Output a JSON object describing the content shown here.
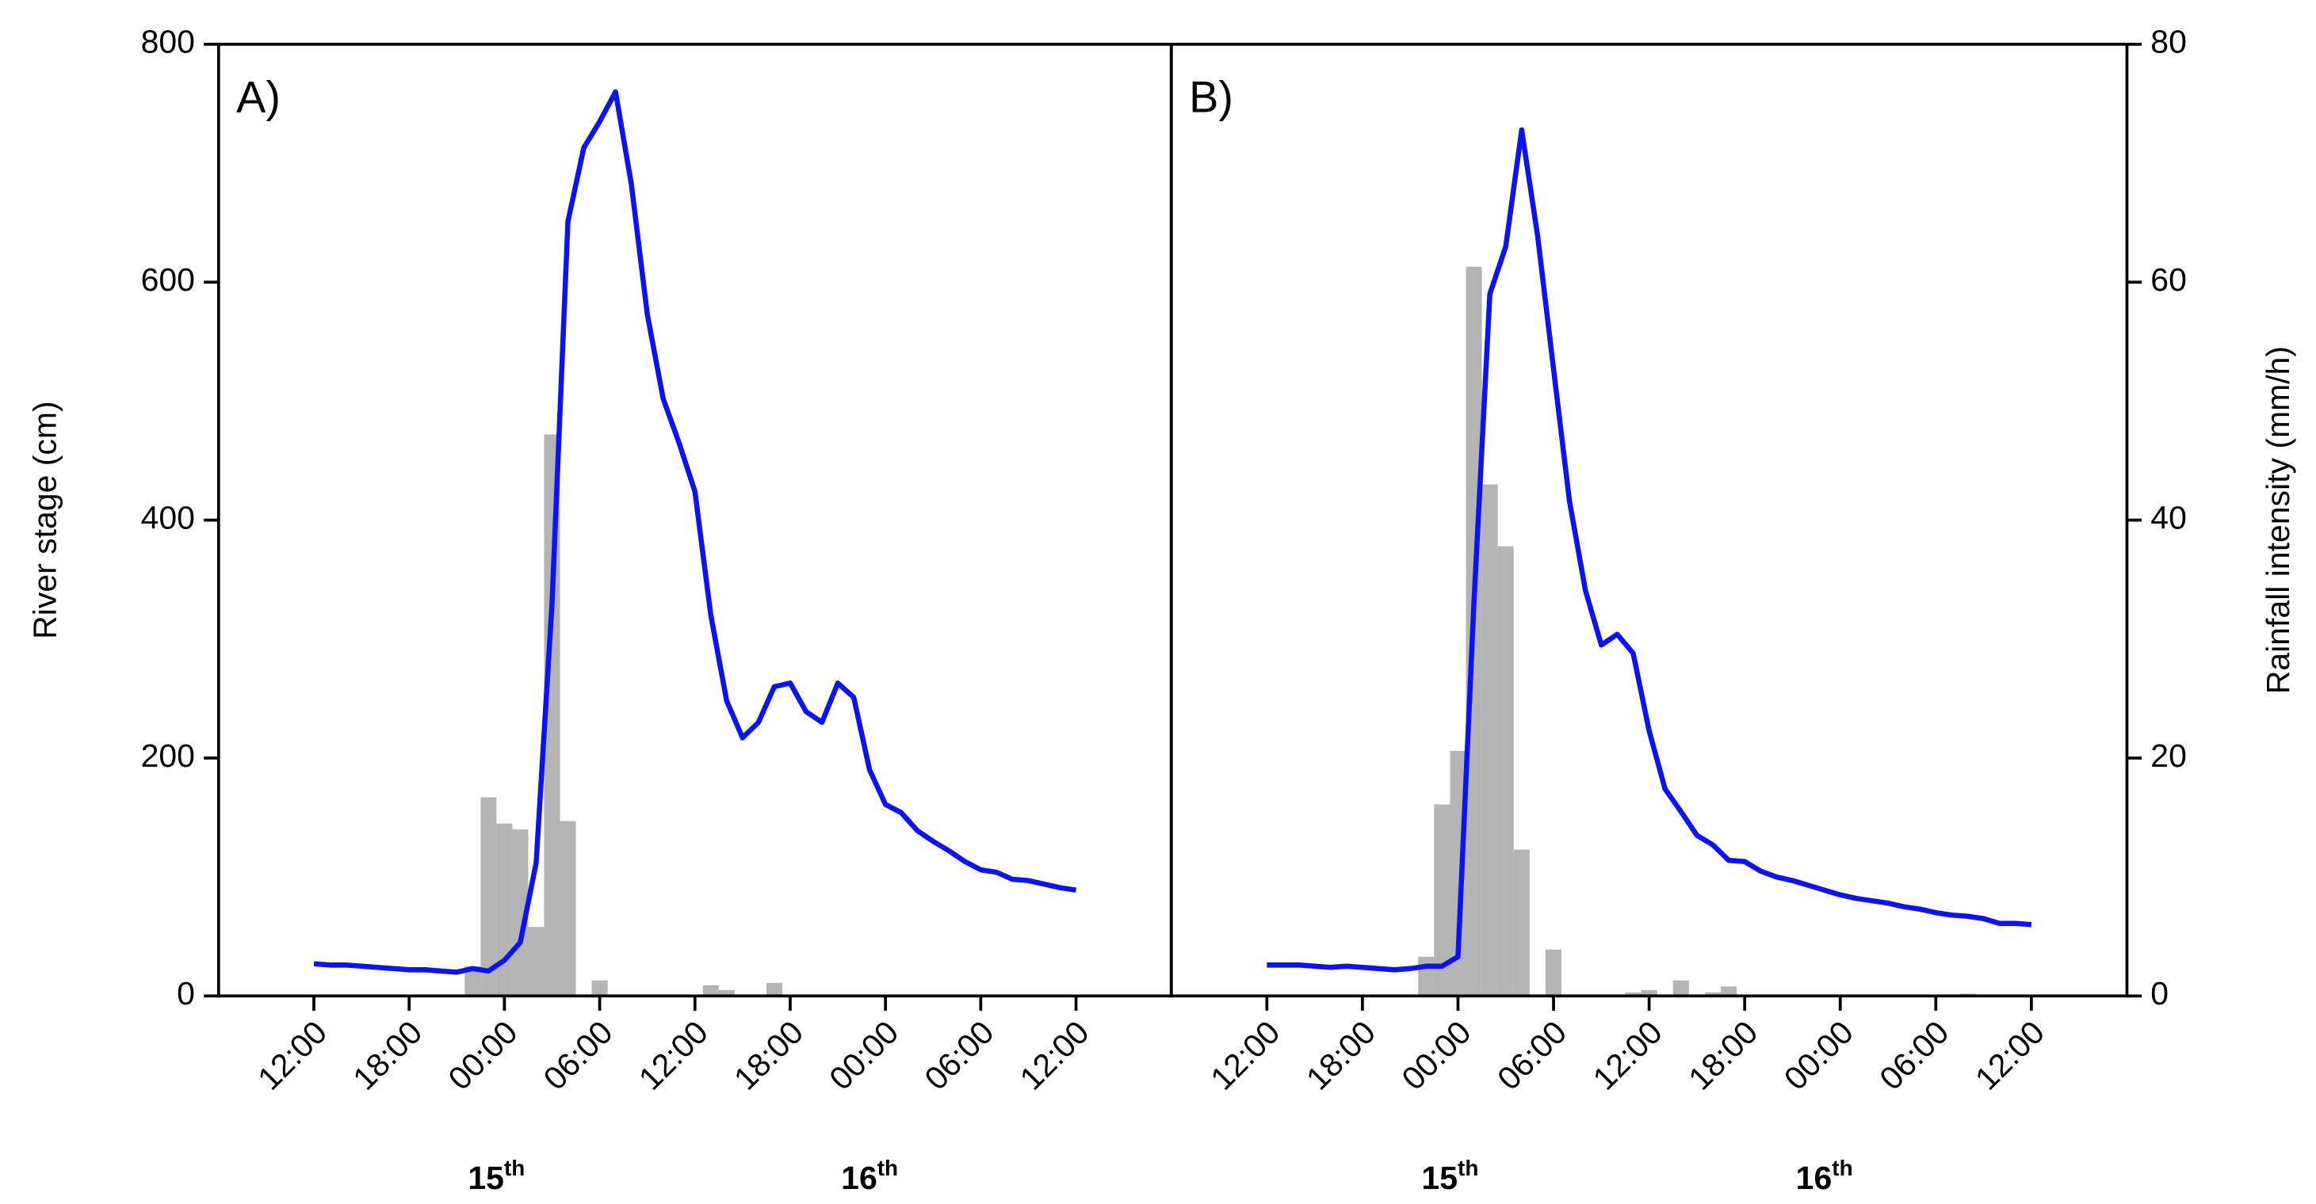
{
  "chart_data": [
    {
      "type": "combo",
      "panel_label": "A)",
      "ylabel": "River stage (cm)",
      "xlim": [
        -6,
        54
      ],
      "ylim": [
        0,
        800
      ],
      "y2lim": [
        0,
        80
      ],
      "yticks": [
        0,
        200,
        400,
        600,
        800
      ],
      "xticks": [
        {
          "value": 0,
          "label": "12:00"
        },
        {
          "value": 6,
          "label": "18:00"
        },
        {
          "value": 12,
          "label": "00:00"
        },
        {
          "value": 18,
          "label": "06:00"
        },
        {
          "value": 24,
          "label": "12:00"
        },
        {
          "value": 30,
          "label": "18:00"
        },
        {
          "value": 36,
          "label": "00:00"
        },
        {
          "value": 42,
          "label": "06:00"
        },
        {
          "value": 48,
          "label": "12:00"
        }
      ],
      "day_labels": [
        {
          "x": 11.5,
          "day": "15",
          "suffix": "th"
        },
        {
          "x": 35,
          "day": "16",
          "suffix": "th"
        }
      ],
      "x": [
        0,
        1,
        2,
        3,
        4,
        5,
        6,
        7,
        8,
        9,
        10,
        11,
        12,
        13,
        14,
        15,
        16,
        17,
        18,
        19,
        20,
        21,
        22,
        23,
        24,
        25,
        26,
        27,
        28,
        29,
        30,
        31,
        32,
        33,
        34,
        35,
        36,
        37,
        38,
        39,
        40,
        41,
        42,
        43,
        44,
        45,
        46,
        47,
        48
      ],
      "stage": {
        "color": "#0a14f0",
        "values": [
          27,
          26,
          26,
          25,
          24,
          23,
          22,
          22,
          21,
          20,
          23,
          21,
          30,
          45,
          112,
          330,
          651,
          713,
          735,
          760,
          682,
          573,
          502,
          465,
          424,
          320,
          248,
          217,
          230,
          260,
          263,
          239,
          230,
          263,
          251,
          190,
          161,
          154,
          139,
          130,
          122,
          113,
          106,
          104,
          98,
          97,
          94,
          91,
          89
        ]
      },
      "rainfall": {
        "color": "#b4b4b4",
        "x": [
          10,
          11,
          12,
          13,
          14,
          15,
          16,
          18,
          25,
          26,
          29
        ],
        "values": [
          2.5,
          16.7,
          14.5,
          14.0,
          5.8,
          47.2,
          14.7,
          1.3,
          0.9,
          0.5,
          1.1
        ]
      }
    },
    {
      "type": "combo",
      "panel_label": "B)",
      "y2label": "Rainfall intensity (mm/h)",
      "xlim": [
        -6,
        54
      ],
      "ylim": [
        0,
        800
      ],
      "y2lim": [
        0,
        80
      ],
      "y2ticks": [
        0,
        20,
        40,
        60,
        80
      ],
      "xticks": [
        {
          "value": 0,
          "label": "12:00"
        },
        {
          "value": 6,
          "label": "18:00"
        },
        {
          "value": 12,
          "label": "00:00"
        },
        {
          "value": 18,
          "label": "06:00"
        },
        {
          "value": 24,
          "label": "12:00"
        },
        {
          "value": 30,
          "label": "18:00"
        },
        {
          "value": 36,
          "label": "00:00"
        },
        {
          "value": 42,
          "label": "06:00"
        },
        {
          "value": 48,
          "label": "12:00"
        }
      ],
      "day_labels": [
        {
          "x": 11.5,
          "day": "15",
          "suffix": "th"
        },
        {
          "x": 35,
          "day": "16",
          "suffix": "th"
        }
      ],
      "x": [
        0,
        1,
        2,
        3,
        4,
        5,
        6,
        7,
        8,
        9,
        10,
        11,
        12,
        13,
        14,
        15,
        16,
        17,
        18,
        19,
        20,
        21,
        22,
        23,
        24,
        25,
        26,
        27,
        28,
        29,
        30,
        31,
        32,
        33,
        34,
        35,
        36,
        37,
        38,
        39,
        40,
        41,
        42,
        43,
        44,
        45,
        46,
        47,
        48
      ],
      "stage": {
        "color": "#0a14f0",
        "values": [
          26,
          26,
          26,
          25,
          24,
          25,
          24,
          23,
          22,
          23,
          25,
          25,
          33,
          330,
          590,
          630,
          728,
          639,
          527,
          416,
          341,
          295,
          304,
          288,
          223,
          174,
          155,
          135,
          127,
          114,
          113,
          105,
          100,
          97,
          93,
          89,
          85,
          82,
          80,
          78,
          75,
          73,
          70,
          68,
          67,
          65,
          61,
          61,
          60
        ]
      },
      "rainfall": {
        "color": "#b4b4b4",
        "x": [
          10,
          11,
          12,
          13,
          14,
          15,
          16,
          18,
          23,
          24,
          26,
          28,
          29,
          44
        ],
        "values": [
          3.3,
          16.1,
          20.6,
          61.3,
          43.0,
          37.8,
          12.3,
          3.9,
          0.3,
          0.5,
          1.3,
          0.3,
          0.8,
          0.2
        ]
      }
    }
  ]
}
